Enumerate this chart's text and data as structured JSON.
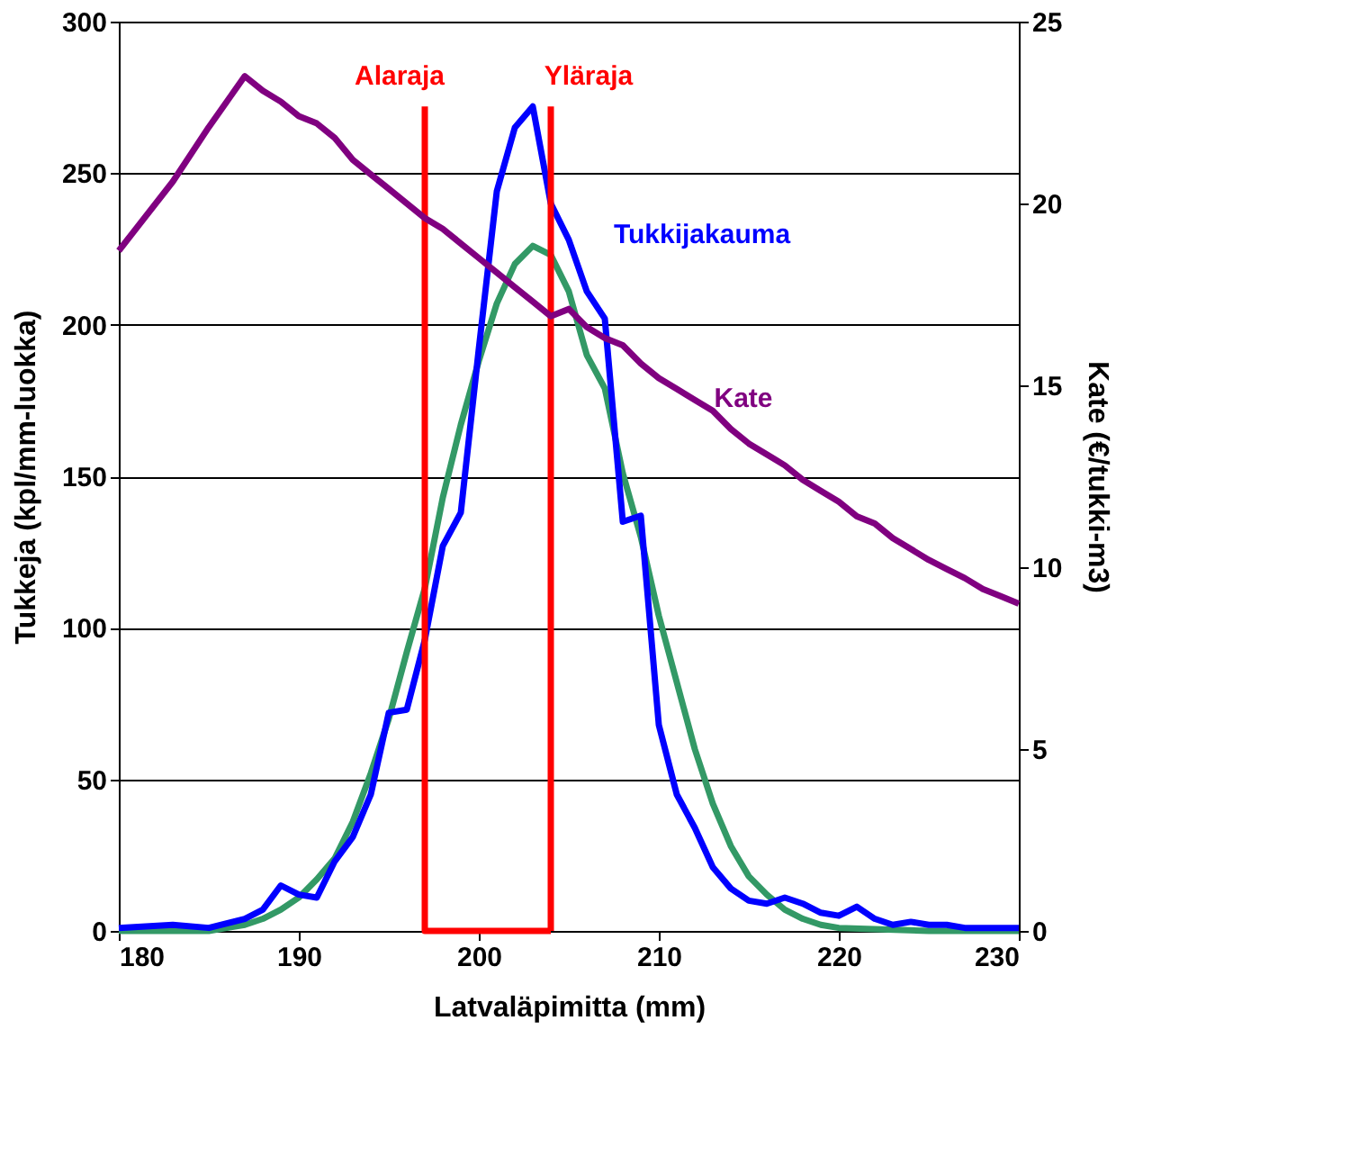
{
  "chart_data": {
    "type": "line",
    "xlabel": "Latvaläpimitta  (mm)",
    "ylabel": "Tukkeja (kpl/mm-luokka)",
    "y2label": "Kate (€/tukki-m3)",
    "xlim": [
      180,
      230
    ],
    "xticks": [
      180,
      190,
      200,
      210,
      220,
      230
    ],
    "ylim": [
      0,
      300
    ],
    "yticks": [
      0,
      50,
      100,
      150,
      200,
      250,
      300
    ],
    "y2lim": [
      0,
      25
    ],
    "y2ticks": [
      0,
      5,
      10,
      15,
      20,
      25
    ],
    "grid": "y",
    "legend": false,
    "line_style": "solid",
    "marker": "none",
    "series": [
      {
        "color": "#339966",
        "x": [
          180,
          185,
          186,
          187,
          188,
          189,
          190,
          191,
          192,
          193,
          194,
          195,
          196,
          197,
          198,
          199,
          200,
          201,
          202,
          203,
          204,
          205,
          206,
          207,
          208,
          209,
          210,
          211,
          212,
          213,
          214,
          215,
          216,
          217,
          218,
          219,
          220,
          225,
          230
        ],
        "values": [
          0,
          0,
          1,
          2,
          4,
          7,
          11,
          17,
          24,
          36,
          52,
          70,
          92,
          113,
          143,
          167,
          188,
          207,
          220,
          226,
          223,
          211,
          190,
          179,
          151,
          130,
          104,
          82,
          60,
          42,
          28,
          18,
          12,
          7,
          4,
          2,
          1,
          0,
          0
        ]
      },
      {
        "name": "Tukkijakauma",
        "color": "#0000ff",
        "x": [
          180,
          183,
          185,
          187,
          188,
          189,
          190,
          191,
          192,
          193,
          194,
          195,
          196,
          197,
          198,
          199,
          200,
          201,
          202,
          203,
          204,
          205,
          206,
          207,
          208,
          209,
          210,
          211,
          212,
          213,
          214,
          215,
          216,
          217,
          218,
          219,
          220,
          221,
          222,
          223,
          224,
          225,
          226,
          227,
          228,
          229,
          230
        ],
        "values": [
          1,
          2,
          1,
          4,
          7,
          15,
          12,
          11,
          23,
          31,
          45,
          72,
          73,
          96,
          127,
          138,
          192,
          244,
          265,
          272,
          240,
          228,
          211,
          202,
          135,
          137,
          68,
          45,
          34,
          21,
          14,
          10,
          9,
          11,
          9,
          6,
          5,
          8,
          4,
          2,
          3,
          2,
          2,
          1,
          1,
          1,
          1
        ]
      },
      {
        "name": "Kate",
        "color": "#800080",
        "axis": "y2",
        "x": [
          180,
          183,
          185,
          187,
          188,
          189,
          190,
          191,
          192,
          193,
          194,
          195,
          196,
          197,
          198,
          199,
          200,
          201,
          202,
          203,
          204,
          205,
          206,
          207,
          208,
          209,
          210,
          211,
          212,
          213,
          214,
          215,
          216,
          217,
          218,
          219,
          220,
          221,
          222,
          223,
          224,
          225,
          226,
          227,
          228,
          229,
          230
        ],
        "values": [
          18.7,
          20.6,
          22.1,
          23.5,
          23.1,
          22.8,
          22.4,
          22.2,
          21.8,
          21.2,
          20.8,
          20.4,
          20.0,
          19.6,
          19.3,
          18.9,
          18.5,
          18.1,
          17.7,
          17.3,
          16.9,
          17.1,
          16.6,
          16.3,
          16.1,
          15.6,
          15.2,
          14.9,
          14.6,
          14.3,
          13.8,
          13.4,
          13.1,
          12.8,
          12.4,
          12.1,
          11.8,
          11.4,
          11.2,
          10.8,
          10.5,
          10.2,
          9.95,
          9.7,
          9.4,
          9.2,
          9.0
        ]
      },
      {
        "name": "Alaraja",
        "color": "#ff0000",
        "x": [
          197,
          197,
          204
        ],
        "values": [
          272,
          0,
          0
        ]
      },
      {
        "name": "Yläraja",
        "color": "#ff0000",
        "x": [
          204,
          204
        ],
        "values": [
          0,
          272
        ]
      }
    ]
  }
}
